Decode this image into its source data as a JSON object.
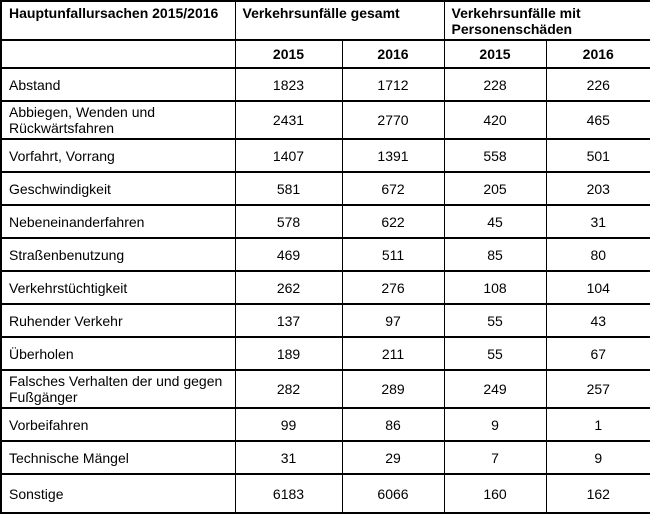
{
  "table": {
    "corner_header": "Hauptunfallursachen 2015/2016",
    "group_headers": [
      "Verkehrsunfälle gesamt",
      "Verkehrsunfälle mit Personenschäden"
    ],
    "year_headers": [
      "2015",
      "2016",
      "2015",
      "2016"
    ],
    "rows": [
      {
        "label": "Abstand",
        "values": [
          "1823",
          "1712",
          "228",
          "226"
        ]
      },
      {
        "label": "Abbiegen, Wenden und Rückwärtsfahren",
        "values": [
          "2431",
          "2770",
          "420",
          "465"
        ]
      },
      {
        "label": "Vorfahrt, Vorrang",
        "values": [
          "1407",
          "1391",
          "558",
          "501"
        ]
      },
      {
        "label": "Geschwindigkeit",
        "values": [
          "581",
          "672",
          "205",
          "203"
        ]
      },
      {
        "label": "Nebeneinanderfahren",
        "values": [
          "578",
          "622",
          "45",
          "31"
        ]
      },
      {
        "label": "Straßenbenutzung",
        "values": [
          "469",
          "511",
          "85",
          "80"
        ]
      },
      {
        "label": "Verkehrstüchtigkeit",
        "values": [
          "262",
          "276",
          "108",
          "104"
        ]
      },
      {
        "label": "Ruhender Verkehr",
        "values": [
          "137",
          "97",
          "55",
          "43"
        ]
      },
      {
        "label": "Überholen",
        "values": [
          "189",
          "211",
          "55",
          "67"
        ]
      },
      {
        "label": "Falsches Verhalten der und gegen Fußgänger",
        "values": [
          "282",
          "289",
          "249",
          "257"
        ]
      },
      {
        "label": "Vorbeifahren",
        "values": [
          "99",
          "86",
          "9",
          "1"
        ]
      },
      {
        "label": "Technische Mängel",
        "values": [
          "31",
          "29",
          "7",
          "9"
        ]
      },
      {
        "label": "Sonstige",
        "values": [
          "6183",
          "6066",
          "160",
          "162"
        ]
      }
    ]
  },
  "chart_data": {
    "type": "table",
    "title": "Hauptunfallursachen 2015/2016",
    "column_groups": [
      "Verkehrsunfälle gesamt",
      "Verkehrsunfälle mit Personenschäden"
    ],
    "columns": [
      "Hauptunfallursachen",
      "Verkehrsunfälle gesamt 2015",
      "Verkehrsunfälle gesamt 2016",
      "Verkehrsunfälle mit Personenschäden 2015",
      "Verkehrsunfälle mit Personenschäden 2016"
    ],
    "rows": [
      [
        "Abstand",
        1823,
        1712,
        228,
        226
      ],
      [
        "Abbiegen, Wenden und Rückwärtsfahren",
        2431,
        2770,
        420,
        465
      ],
      [
        "Vorfahrt, Vorrang",
        1407,
        1391,
        558,
        501
      ],
      [
        "Geschwindigkeit",
        581,
        672,
        205,
        203
      ],
      [
        "Nebeneinanderfahren",
        578,
        622,
        45,
        31
      ],
      [
        "Straßenbenutzung",
        469,
        511,
        85,
        80
      ],
      [
        "Verkehrstüchtigkeit",
        262,
        276,
        108,
        104
      ],
      [
        "Ruhender Verkehr",
        137,
        97,
        55,
        43
      ],
      [
        "Überholen",
        189,
        211,
        55,
        67
      ],
      [
        "Falsches Verhalten der und gegen Fußgänger",
        282,
        289,
        249,
        257
      ],
      [
        "Vorbeifahren",
        99,
        86,
        9,
        1
      ],
      [
        "Technische Mängel",
        31,
        29,
        7,
        9
      ],
      [
        "Sonstige",
        6183,
        6066,
        160,
        162
      ]
    ]
  }
}
